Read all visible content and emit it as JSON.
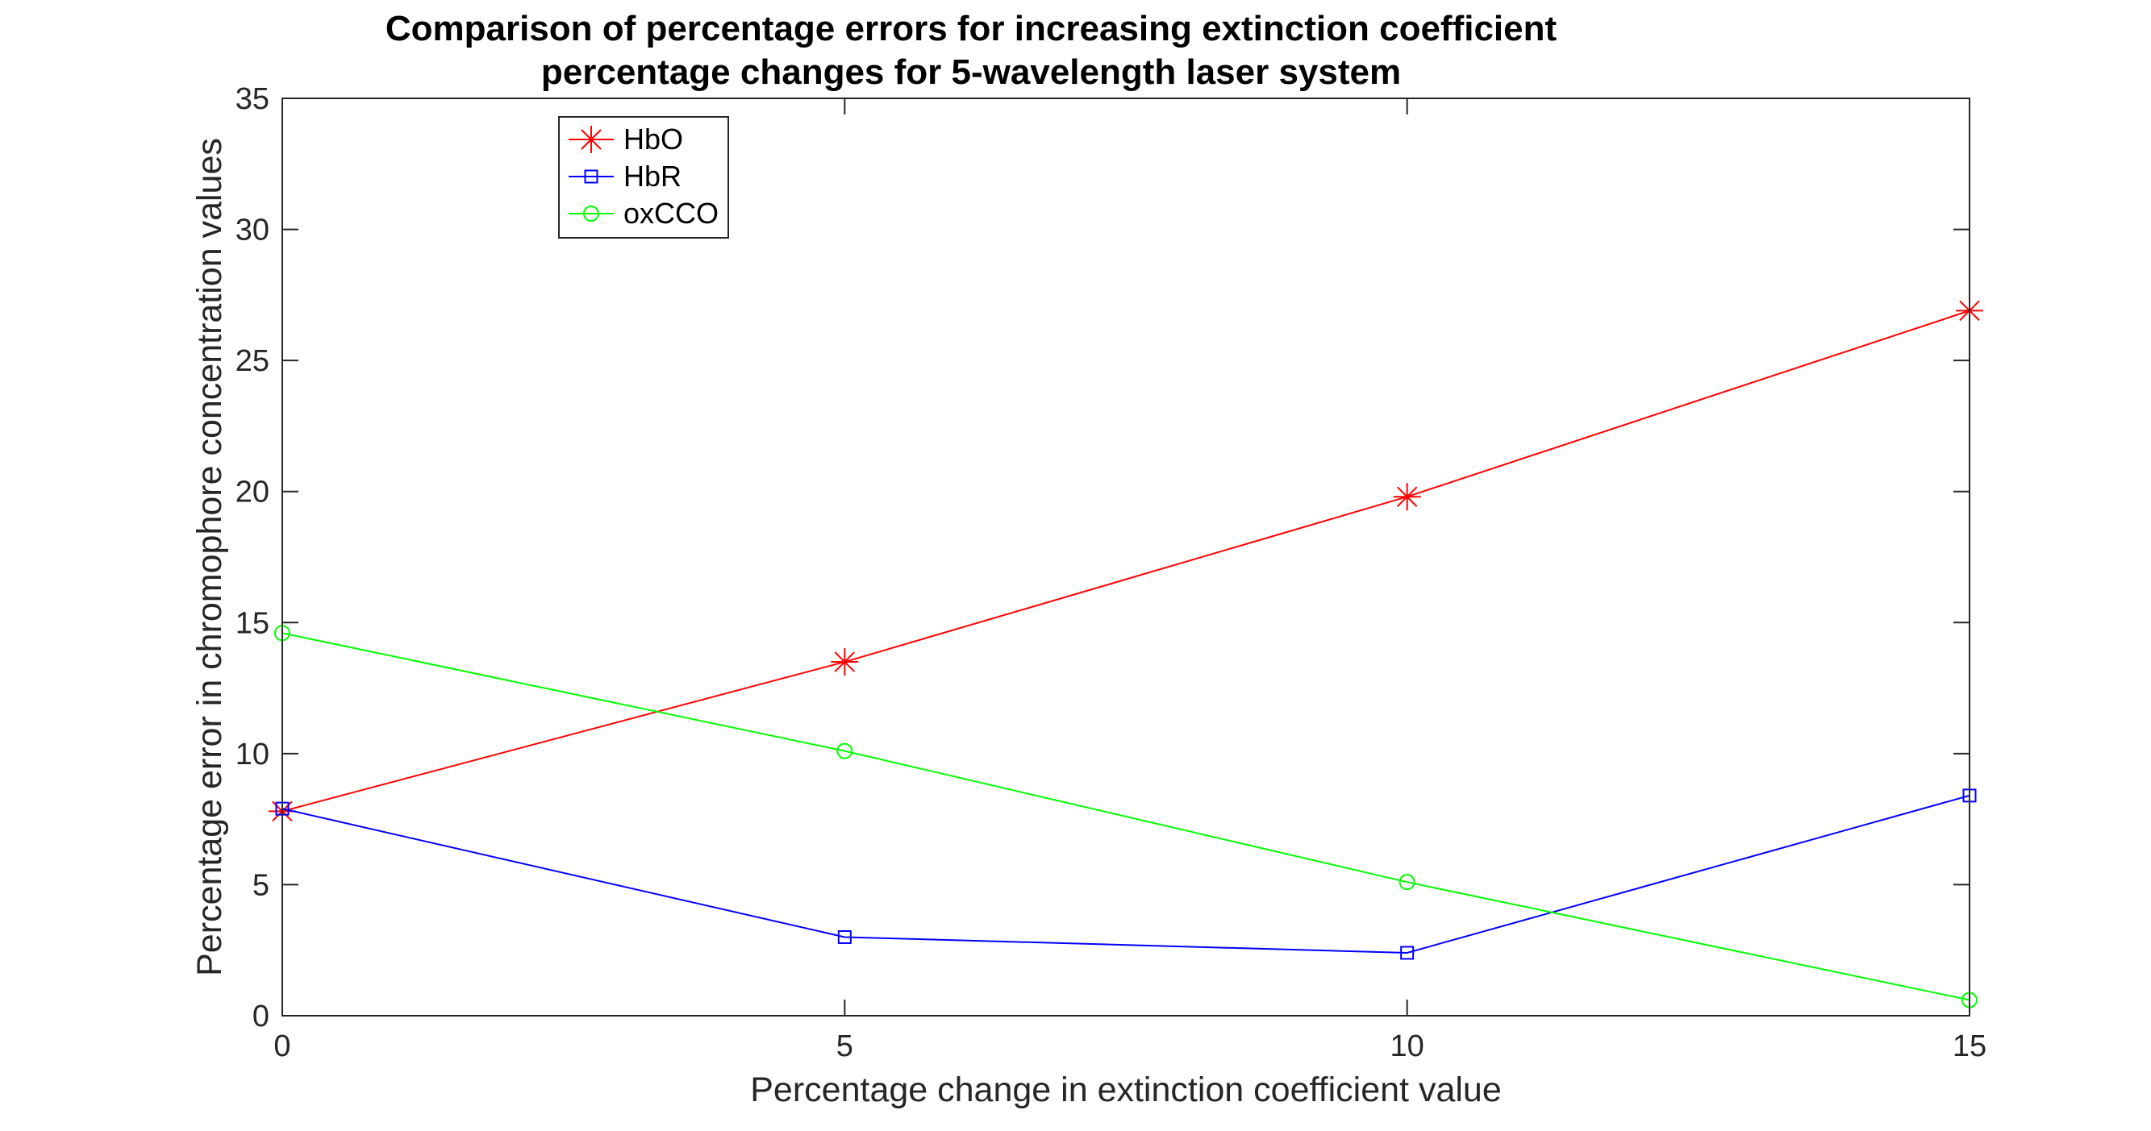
{
  "chart_data": {
    "type": "line",
    "title_lines": [
      "Comparison of percentage errors for increasing extinction coefficient",
      "percentage changes for 5-wavelength laser system"
    ],
    "xlabel": "Percentage change in extinction coefficient value",
    "ylabel": "Percentage error in chromophore concentration values",
    "xlim": [
      0,
      15
    ],
    "ylim": [
      0,
      35
    ],
    "xticks": [
      0,
      5,
      10,
      15
    ],
    "yticks": [
      0,
      5,
      10,
      15,
      20,
      25,
      30,
      35
    ],
    "x": [
      0,
      5,
      10,
      15
    ],
    "grid": false,
    "legend_position": "top-left",
    "series": [
      {
        "name": "HbO",
        "color": "#ff0000",
        "marker": "asterisk",
        "values": [
          7.8,
          13.5,
          19.8,
          26.9
        ]
      },
      {
        "name": "HbR",
        "color": "#0000ff",
        "marker": "square",
        "values": [
          7.9,
          3.0,
          2.4,
          8.4
        ]
      },
      {
        "name": "oxCCO",
        "color": "#00ff00",
        "marker": "circle",
        "values": [
          14.6,
          10.1,
          5.1,
          0.6
        ]
      }
    ]
  }
}
